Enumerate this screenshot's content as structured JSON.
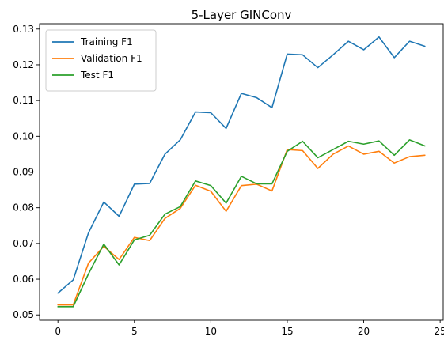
{
  "chart_data": {
    "type": "line",
    "title": "5-Layer GINConv",
    "xlabel": "",
    "ylabel": "",
    "xlim": [
      -1.2,
      25.2
    ],
    "ylim": [
      0.0485,
      0.1315
    ],
    "xticks": [
      0,
      5,
      10,
      15,
      20,
      25
    ],
    "yticks": [
      0.05,
      0.06,
      0.07,
      0.08,
      0.09,
      0.1,
      0.11,
      0.12,
      0.13
    ],
    "ytick_labels": [
      "0.05",
      "0.06",
      "0.07",
      "0.08",
      "0.09",
      "0.10",
      "0.11",
      "0.12",
      "0.13"
    ],
    "grid": false,
    "legend_position": "upper-left",
    "x": [
      0,
      1,
      2,
      3,
      4,
      5,
      6,
      7,
      8,
      9,
      10,
      11,
      12,
      13,
      14,
      15,
      16,
      17,
      18,
      19,
      20,
      21,
      22,
      23,
      24
    ],
    "series": [
      {
        "name": "Training F1",
        "color": "#1f77b4",
        "values": [
          0.0561,
          0.0598,
          0.073,
          0.0816,
          0.0776,
          0.0866,
          0.0868,
          0.095,
          0.099,
          0.1068,
          0.1066,
          0.1022,
          0.112,
          0.1108,
          0.108,
          0.123,
          0.1228,
          0.1192,
          0.1228,
          0.1266,
          0.1242,
          0.1278,
          0.122,
          0.1266,
          0.1252
        ]
      },
      {
        "name": "Validation F1",
        "color": "#ff7f0e",
        "values": [
          0.0528,
          0.0528,
          0.0645,
          0.0692,
          0.0655,
          0.0717,
          0.0708,
          0.077,
          0.0798,
          0.0863,
          0.0846,
          0.079,
          0.0862,
          0.0866,
          0.0847,
          0.0963,
          0.096,
          0.091,
          0.095,
          0.0973,
          0.095,
          0.0958,
          0.0925,
          0.0943,
          0.0947
        ]
      },
      {
        "name": "Test F1",
        "color": "#2ca02c",
        "values": [
          0.0523,
          0.0523,
          0.0615,
          0.0698,
          0.064,
          0.071,
          0.0723,
          0.0782,
          0.0803,
          0.0875,
          0.0862,
          0.0813,
          0.0888,
          0.0867,
          0.0867,
          0.0958,
          0.0986,
          0.094,
          0.0963,
          0.0986,
          0.0978,
          0.0987,
          0.0947,
          0.099,
          0.0973
        ]
      }
    ]
  }
}
